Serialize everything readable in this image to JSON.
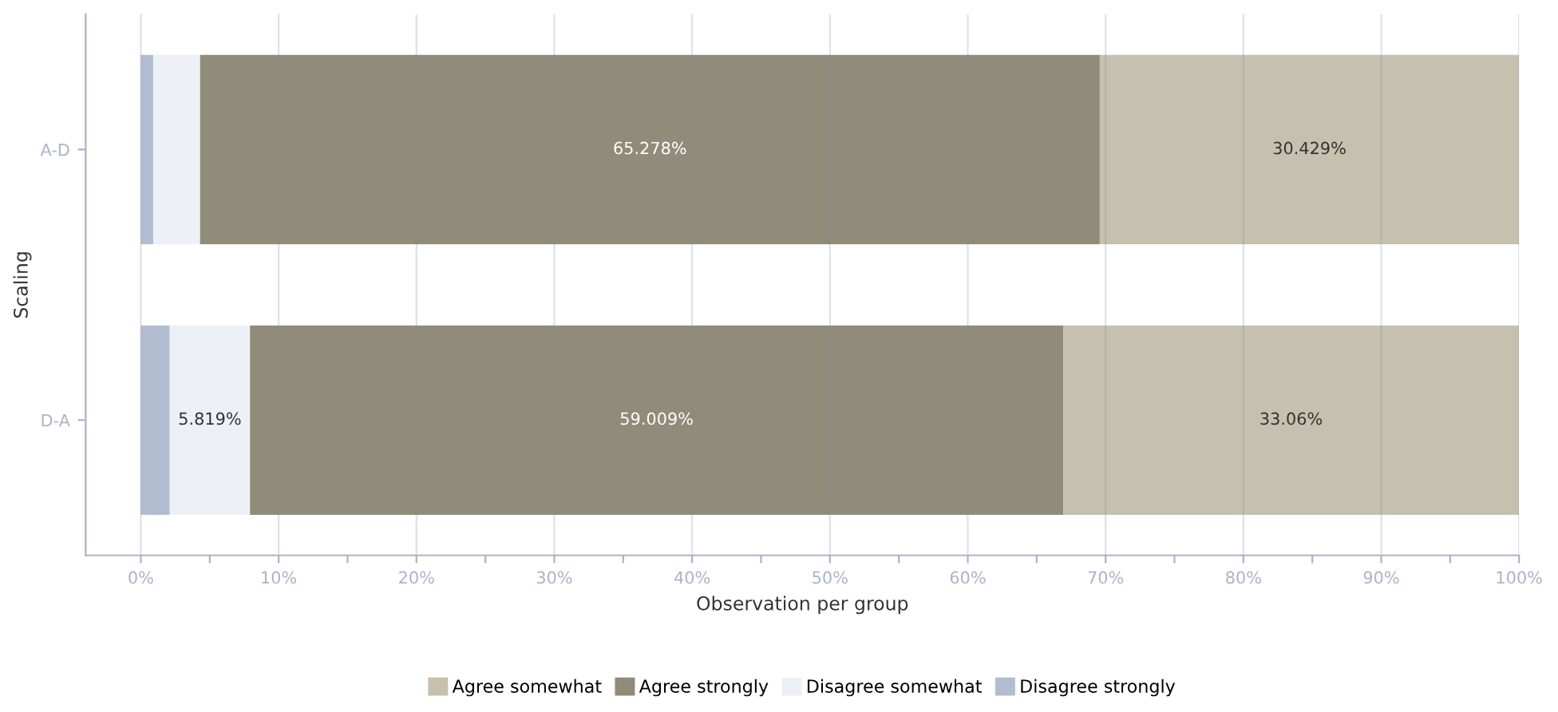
{
  "chart_data": {
    "type": "bar",
    "orientation": "horizontal",
    "stacked": true,
    "ylabel": "Scaling",
    "xlabel": "Observation per group",
    "categories": [
      "A-D",
      "D-A"
    ],
    "series": [
      {
        "name": "Disagree strongly",
        "color": "#b2bdd1",
        "values": [
          0.9,
          2.1
        ],
        "value_labels": [
          null,
          null
        ]
      },
      {
        "name": "Disagree somewhat",
        "color": "#edf0f6",
        "values": [
          3.4,
          5.819
        ],
        "value_labels": [
          null,
          "5.819%"
        ]
      },
      {
        "name": "Agree strongly",
        "color": "#918b79",
        "values": [
          65.278,
          59.009
        ],
        "value_labels": [
          "65.278%",
          "59.009%"
        ]
      },
      {
        "name": "Agree somewhat",
        "color": "#c6c0ae",
        "values": [
          30.429,
          33.06
        ],
        "value_labels": [
          "30.429%",
          "33.06%"
        ]
      }
    ],
    "xlim": [
      -4,
      100
    ],
    "xticks": [
      {
        "value": 0,
        "label": "0%"
      },
      {
        "value": 5,
        "label": null
      },
      {
        "value": 10,
        "label": "10%"
      },
      {
        "value": 15,
        "label": null
      },
      {
        "value": 20,
        "label": "20%"
      },
      {
        "value": 25,
        "label": null
      },
      {
        "value": 30,
        "label": "30%"
      },
      {
        "value": 35,
        "label": null
      },
      {
        "value": 40,
        "label": "40%"
      },
      {
        "value": 45,
        "label": null
      },
      {
        "value": 50,
        "label": "50%"
      },
      {
        "value": 55,
        "label": null
      },
      {
        "value": 60,
        "label": "60%"
      },
      {
        "value": 65,
        "label": null
      },
      {
        "value": 70,
        "label": "70%"
      },
      {
        "value": 75,
        "label": null
      },
      {
        "value": 80,
        "label": "80%"
      },
      {
        "value": 85,
        "label": null
      },
      {
        "value": 90,
        "label": "90%"
      },
      {
        "value": 95,
        "label": null
      },
      {
        "value": 100,
        "label": "100%"
      }
    ],
    "grid": "x",
    "legend": "bottom"
  }
}
